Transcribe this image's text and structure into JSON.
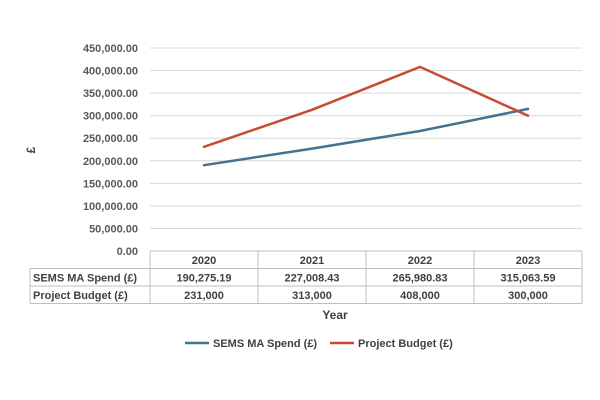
{
  "chart_data": {
    "type": "line",
    "title": "",
    "xlabel": "Year",
    "ylabel": "£",
    "categories": [
      "2020",
      "2021",
      "2022",
      "2023"
    ],
    "ylim": [
      0,
      450000
    ],
    "yticks": [
      0,
      50000,
      100000,
      150000,
      200000,
      250000,
      300000,
      350000,
      400000,
      450000
    ],
    "ytick_labels": [
      "0.00",
      "50,000.00",
      "100,000.00",
      "150,000.00",
      "200,000.00",
      "250,000.00",
      "300,000.00",
      "350,000.00",
      "400,000.00",
      "450,000.00"
    ],
    "grid": true,
    "legend_position": "bottom",
    "series": [
      {
        "name": "SEMS MA Spend (£)",
        "color": "#44728f",
        "values": [
          190275.19,
          227008.43,
          265980.83,
          315063.59
        ],
        "table_values": [
          "190,275.19",
          "227,008.43",
          "265,980.83",
          "315,063.59"
        ]
      },
      {
        "name": "Project Budget (£)",
        "color": "#c84b31",
        "values": [
          231000,
          313000,
          408000,
          300000
        ],
        "table_values": [
          "231,000",
          "313,000",
          "408,000",
          "300,000"
        ]
      }
    ]
  }
}
